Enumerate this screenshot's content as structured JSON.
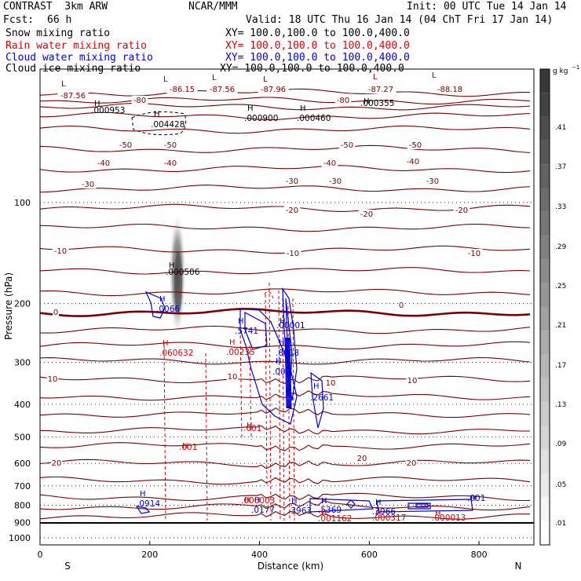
{
  "header": {
    "model": "CONTRAST  3km ARW",
    "org": "NCAR/MMM",
    "init": "Init: 00 UTC Tue 14 Jan 14",
    "fcst_label": "Fcst:",
    "fcst_value": "66 h",
    "valid": "Valid: 18 UTC Thu 16 Jan 14 (04 ChT Fri 17 Jan 14)",
    "fields": [
      {
        "name": "Snow mixing ratio",
        "xy": "XY= 100.0,100.0 to 100.0,400.0",
        "color": "#000000"
      },
      {
        "name": "Rain water mixing ratio",
        "xy": "XY= 100.0,100.0 to 100.0,400.0",
        "color": "#e00000"
      },
      {
        "name": "Cloud water mixing ratio",
        "xy": "XY= 100.0,100.0 to 100.0,400.0",
        "color": "#0000d0"
      },
      {
        "name": "Cloud ice mixing ratio",
        "xy": "XY= 100.0,100.0 to 100.0,400.0",
        "color": "#000000"
      }
    ]
  },
  "colorbar": {
    "unit_main": "g kg",
    "unit_exp": "−1",
    "labels": [
      ".41",
      ".37",
      ".33",
      ".29",
      ".25",
      ".21",
      ".17",
      ".13",
      ".09",
      ".05",
      ".01"
    ]
  },
  "chart_data": {
    "type": "contour",
    "xlabel": "Distance (km)",
    "ylabel": "Pressure (hPa)",
    "xlim": [
      0,
      900
    ],
    "ylim": [
      1050,
      40
    ],
    "y_scale": "log",
    "x_ticks": [
      "0",
      "200",
      "400",
      "600",
      "800"
    ],
    "y_ticks": [
      "100",
      "200",
      "300",
      "400",
      "500",
      "600",
      "700",
      "800",
      "900",
      "1000"
    ],
    "x_end_labels": {
      "left": "S",
      "right": "N"
    },
    "temperature_contour_labels": [
      "-87.56",
      "-86.15",
      "-87.56",
      "-87.96",
      "-87.27",
      "-88.18",
      "-80",
      "-80",
      "-50",
      "-50",
      "-50",
      "-50",
      "-40",
      "-40",
      "-40",
      "-40",
      "-30",
      "-30",
      "-30",
      "-30",
      "-20",
      "-20",
      "-20",
      "-10",
      "-10",
      "-10",
      "0",
      "0",
      "10",
      "10",
      "10",
      "10",
      "20",
      "20",
      "20"
    ],
    "maxima": [
      {
        "value": ".000953",
        "color": "#000000"
      },
      {
        "value": ".004428",
        "color": "#000000"
      },
      {
        "value": ".000900",
        "color": "#000000"
      },
      {
        "value": ".000460",
        "color": "#000000"
      },
      {
        "value": ".000355",
        "color": "#000000"
      },
      {
        "value": ".000506",
        "color": "#000000"
      },
      {
        "value": ".0066",
        "color": "#0000d0"
      },
      {
        "value": ".5741",
        "color": "#0000d0"
      },
      {
        "value": ".00001",
        "color": "#0000d0"
      },
      {
        "value": ".8918",
        "color": "#0000d0"
      },
      {
        "value": ".003",
        "color": "#0000d0"
      },
      {
        "value": ".2661",
        "color": "#0000d0"
      },
      {
        "value": ".0914",
        "color": "#0000d0"
      },
      {
        "value": ".0177",
        "color": "#0000d0"
      },
      {
        "value": ".3963",
        "color": "#0000d0"
      },
      {
        "value": ".5369",
        "color": "#0000d0"
      },
      {
        "value": ".3966",
        "color": "#0000d0"
      },
      {
        "value": ".001",
        "color": "#0000d0"
      },
      {
        "value": ".060632",
        "color": "#e00000"
      },
      {
        "value": ".00235",
        "color": "#e00000"
      },
      {
        "value": ".001",
        "color": "#e00000"
      },
      {
        "value": ".001",
        "color": "#e00000"
      },
      {
        "value": ".000003",
        "color": "#e00000"
      },
      {
        "value": ".001162",
        "color": "#e00000"
      },
      {
        "value": ".000317",
        "color": "#e00000"
      },
      {
        "value": ".000013",
        "color": "#e00000"
      }
    ]
  }
}
